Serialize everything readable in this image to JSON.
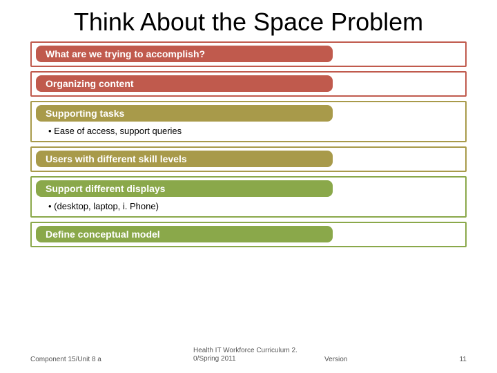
{
  "title": "Think About the Space Problem",
  "title_fontsize": 36,
  "title_color": "#000000",
  "background": "#ffffff",
  "blocks": [
    {
      "label": "What are we trying to accomplish?",
      "pill_color": "#c05a4d",
      "border_color": "#c05a4d",
      "sub": null
    },
    {
      "label": "Organizing content",
      "pill_color": "#c05a4d",
      "border_color": "#c05a4d",
      "sub": null
    },
    {
      "label": "Supporting tasks",
      "pill_color": "#a89a4a",
      "border_color": "#a89a4a",
      "sub": "Ease of access, support queries"
    },
    {
      "label": "Users with different skill levels",
      "pill_color": "#a89a4a",
      "border_color": "#a89a4a",
      "sub": null
    },
    {
      "label": "Support different displays",
      "pill_color": "#8aa84a",
      "border_color": "#8aa84a",
      "sub": "(desktop, laptop, i. Phone)"
    },
    {
      "label": "Define conceptual model",
      "pill_color": "#8aa84a",
      "border_color": "#8aa84a",
      "sub": null
    }
  ],
  "pill_min_width": 430,
  "pill_fontsize": 14,
  "sub_fontsize": 13,
  "footer": {
    "left": "Component 15/Unit 8 a",
    "center": "Health IT Workforce Curriculum 2. 0/Spring 2011",
    "version": "Version",
    "page": "11",
    "fontsize": 10,
    "color": "#555555"
  }
}
